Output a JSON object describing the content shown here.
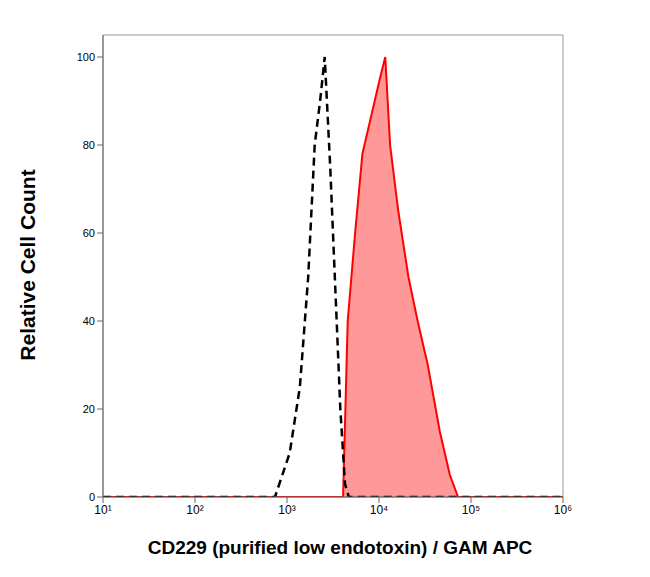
{
  "chart_data": {
    "type": "line",
    "x_label": "CD229 (purified low endotoxin) / GAM APC",
    "y_label": "Relative Cell Count",
    "log": "x",
    "grid": false,
    "xlim": [
      10,
      1000000
    ],
    "ylim": [
      0,
      105
    ],
    "xticks": [
      {
        "value": 10,
        "label": "10¹"
      },
      {
        "value": 100,
        "label": "10²"
      },
      {
        "value": 1000,
        "label": "10³"
      },
      {
        "value": 10000,
        "label": "10⁴"
      },
      {
        "value": 100000,
        "label": "10⁵"
      },
      {
        "value": 1000000,
        "label": "10⁶"
      }
    ],
    "yticks": [
      0,
      20,
      40,
      60,
      80,
      100
    ],
    "series": [
      {
        "type": "line",
        "color": "#000000",
        "line_style": "dashed",
        "x": [
          10,
          740,
          1070,
          1380,
          1700,
          2000,
          2290,
          2570,
          2950,
          3310,
          3800,
          4270,
          4700,
          1000000
        ],
        "values": [
          0,
          0,
          10,
          25,
          50,
          80,
          90,
          100,
          75,
          50,
          20,
          3,
          0,
          0
        ]
      },
      {
        "type": "area",
        "color": "#ff0000",
        "line_style": "solid",
        "x": [
          10,
          4070,
          4570,
          5500,
          6600,
          7900,
          10200,
          11700,
          13200,
          16200,
          20900,
          26300,
          33900,
          45700,
          58900,
          72400,
          1000000
        ],
        "values": [
          0,
          0,
          40,
          60,
          78,
          85,
          95,
          100,
          80,
          65,
          50,
          40,
          30,
          15,
          5,
          0,
          0
        ]
      }
    ]
  }
}
